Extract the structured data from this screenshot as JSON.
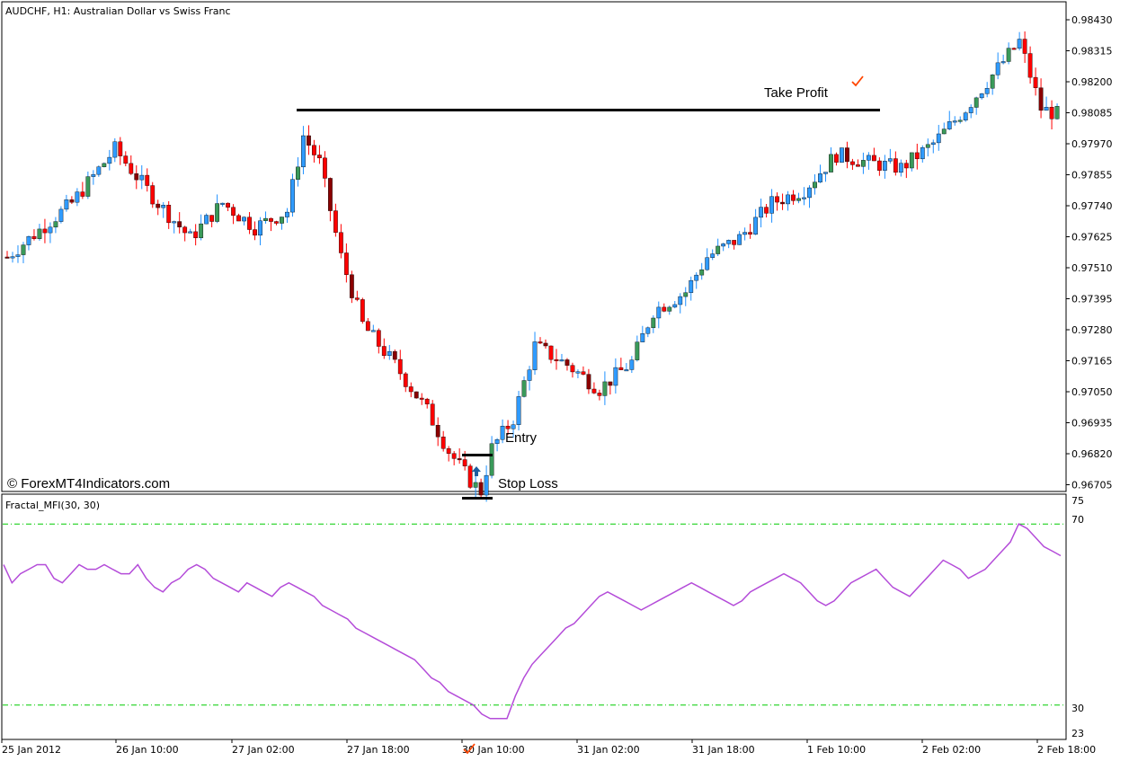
{
  "chart_title": "AUDCHF, H1:  Australian Dollar vs Swiss Franc",
  "watermark": "© ForexMT4Indicators.com",
  "colors": {
    "bull_wick": "#1e90ff",
    "bear_body": "#ff0000",
    "bear_wick": "#ff0000",
    "bull_body_blue": "#2f9bff",
    "bull_body_green": "#3a9a5a",
    "bear_body_dark": "#8b0000",
    "mfi_line": "#b44cd9",
    "level_line": "#00cc00",
    "signal": "#ff4500",
    "arrow": "#1e5fa0"
  },
  "annotations": {
    "take_profit": "Take Profit",
    "entry": "Entry",
    "stop_loss": "Stop Loss"
  },
  "indicator": {
    "label": "Fractal_MFI(30, 30)",
    "levels": {
      "upper": "70",
      "lower": "30"
    },
    "scale": {
      "top": "75",
      "bottom": "23"
    }
  },
  "chart_data": [
    {
      "type": "candlestick",
      "title": "AUDCHF, H1:  Australian Dollar vs Swiss Franc",
      "y_ticks": [
        "0.98430",
        "0.98315",
        "0.98200",
        "0.98085",
        "0.97970",
        "0.97855",
        "0.97740",
        "0.97625",
        "0.97510",
        "0.97395",
        "0.97280",
        "0.97165",
        "0.97050",
        "0.96935",
        "0.96820",
        "0.96705"
      ],
      "x_ticks": [
        "25 Jan 2012",
        "26 Jan 10:00",
        "27 Jan 02:00",
        "27 Jan 18:00",
        "30 Jan 10:00",
        "31 Jan 02:00",
        "31 Jan 18:00",
        "1 Feb 10:00",
        "2 Feb 02:00",
        "2 Feb 18:00"
      ],
      "ylim": [
        0.9665,
        0.9849
      ],
      "levels": {
        "take_profit": 0.98095,
        "entry": 0.96815,
        "stop_loss": 0.96655
      }
    },
    {
      "type": "line",
      "title": "Fractal_MFI(30, 30)",
      "ylim": [
        23,
        75
      ],
      "levels": [
        70,
        30
      ],
      "values": [
        61,
        57,
        59,
        60,
        61,
        61,
        58,
        57,
        59,
        61,
        60,
        60,
        61,
        60,
        59,
        59,
        61,
        58,
        56,
        55,
        57,
        58,
        60,
        61,
        60,
        58,
        57,
        56,
        55,
        57,
        56,
        55,
        54,
        56,
        57,
        56,
        55,
        54,
        52,
        51,
        50,
        49,
        47,
        46,
        45,
        44,
        43,
        42,
        41,
        40,
        38,
        36,
        35,
        33,
        32,
        31,
        30,
        28,
        27,
        27,
        27,
        32,
        36,
        39,
        41,
        43,
        45,
        47,
        48,
        50,
        52,
        54,
        55,
        54,
        53,
        52,
        51,
        52,
        53,
        54,
        55,
        56,
        57,
        56,
        55,
        54,
        53,
        52,
        53,
        55,
        56,
        57,
        58,
        59,
        58,
        57,
        55,
        53,
        52,
        53,
        55,
        57,
        58,
        59,
        60,
        58,
        56,
        55,
        54,
        56,
        58,
        60,
        62,
        61,
        60,
        58,
        59,
        60,
        62,
        64,
        66,
        70,
        69,
        67,
        65,
        64,
        63
      ]
    }
  ]
}
